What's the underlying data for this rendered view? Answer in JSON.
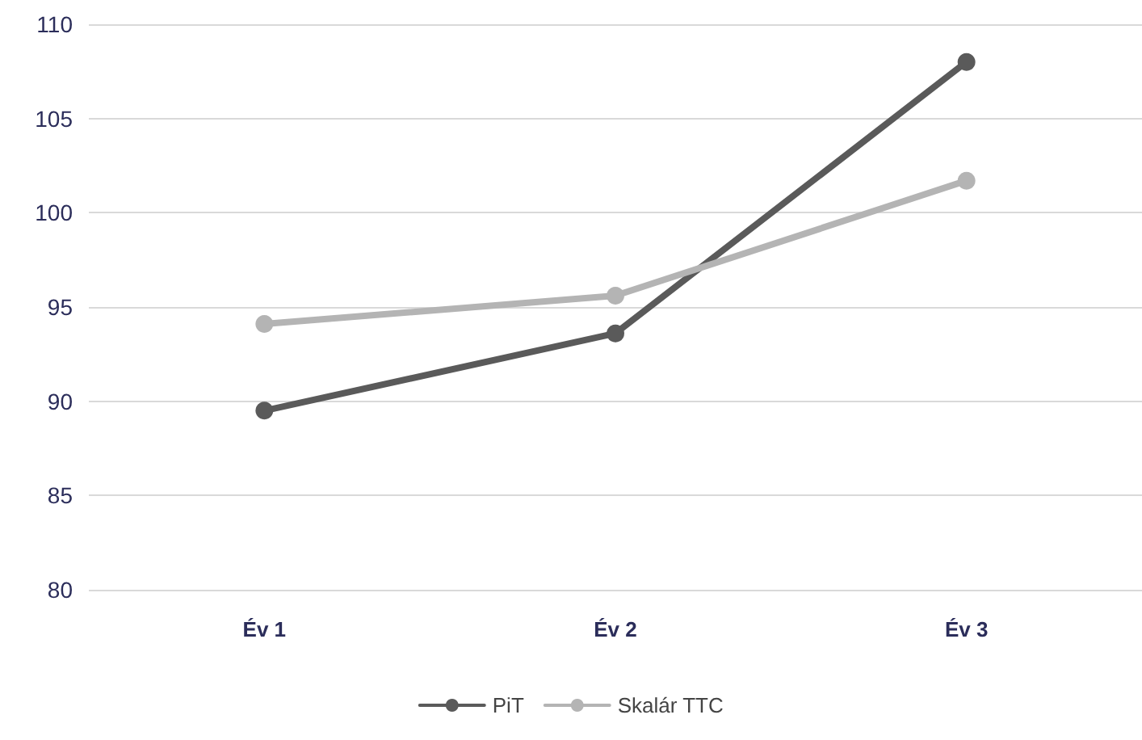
{
  "chart_data": {
    "type": "line",
    "categories": [
      "Év 1",
      "Év 2",
      "Év 3"
    ],
    "series": [
      {
        "name": "PiT",
        "color": "#5a5a5a",
        "values": [
          89.5,
          93.6,
          108.0
        ]
      },
      {
        "name": "Skalár TTC",
        "color": "#b4b4b4",
        "values": [
          94.1,
          95.6,
          101.7
        ]
      }
    ],
    "ylim": [
      80,
      110
    ],
    "yticks": [
      80,
      85,
      90,
      95,
      100,
      105,
      110
    ],
    "grid": "y",
    "legend": "bottom",
    "marker": "circle",
    "line_style": "solid"
  }
}
